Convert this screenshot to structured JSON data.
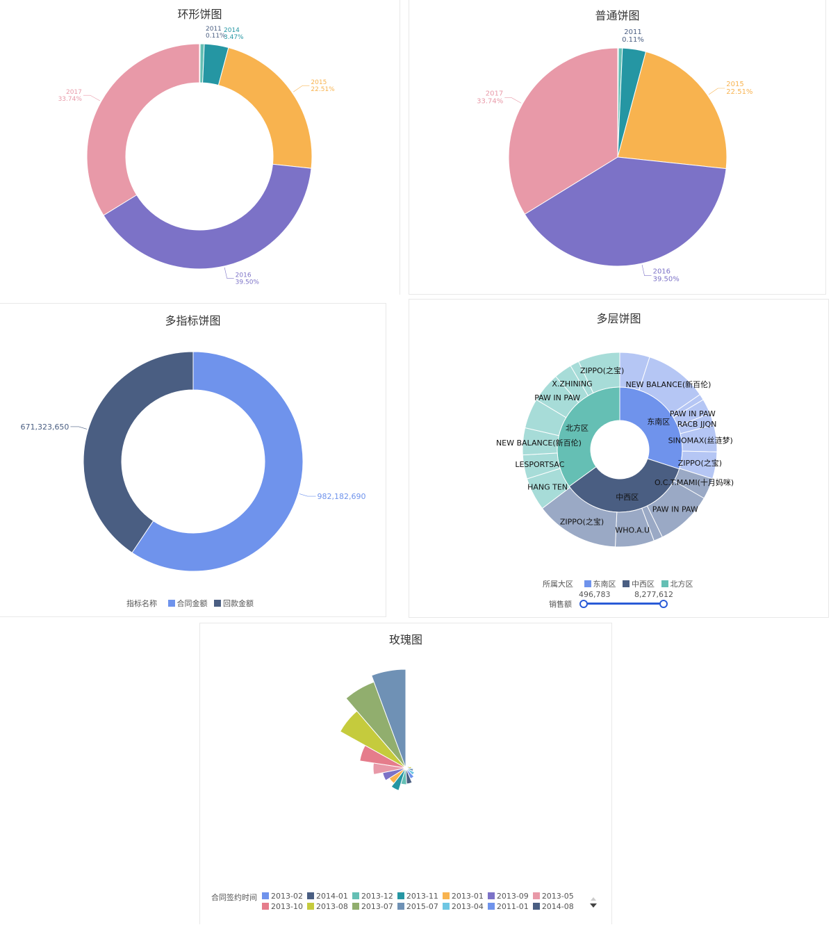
{
  "colors": {
    "teal_dark": "#2596a3",
    "orange": "#f8b34f",
    "purple": "#7c72c7",
    "pink": "#e899a8",
    "blue_light": "#6f93ec",
    "navy": "#4a5e82",
    "blue_gray": "#9aa9c5",
    "teal_light": "#65bfb4",
    "teal_pale": "#a7dcd8",
    "blue_pale": "#b5c6f4"
  },
  "panels": {
    "ring": {
      "title": "环形饼图"
    },
    "pie": {
      "title": "普通饼图"
    },
    "multi": {
      "title": "多指标饼图"
    },
    "sunburst": {
      "title": "多层饼图"
    },
    "rose": {
      "title": "玫瑰图"
    }
  },
  "chart_data": [
    {
      "id": "ring",
      "type": "pie",
      "variant": "donut",
      "title": "环形饼图",
      "slices": [
        {
          "label": "2011",
          "pct_label": "0.11%",
          "value": 0.11,
          "color": "#4a5e82"
        },
        {
          "label": "",
          "pct_label": "",
          "value": 0.58,
          "color": "#65bfb4"
        },
        {
          "label": "2014",
          "pct_label": "3.47%",
          "value": 3.47,
          "color": "#2596a3"
        },
        {
          "label": "2015",
          "pct_label": "22.51%",
          "value": 22.51,
          "color": "#f8b34f"
        },
        {
          "label": "2016",
          "pct_label": "39.50%",
          "value": 39.5,
          "color": "#7c72c7"
        },
        {
          "label": "2017",
          "pct_label": "33.74%",
          "value": 33.74,
          "color": "#e899a8"
        }
      ]
    },
    {
      "id": "pie",
      "type": "pie",
      "title": "普通饼图",
      "slices": [
        {
          "label": "2011",
          "pct_label": "0.11%",
          "value": 0.11,
          "color": "#4a5e82"
        },
        {
          "label": "",
          "pct_label": "",
          "value": 0.58,
          "color": "#65bfb4"
        },
        {
          "label": "",
          "pct_label": "",
          "value": 3.47,
          "color": "#2596a3"
        },
        {
          "label": "2015",
          "pct_label": "22.51%",
          "value": 22.51,
          "color": "#f8b34f"
        },
        {
          "label": "2016",
          "pct_label": "39.50%",
          "value": 39.5,
          "color": "#7c72c7"
        },
        {
          "label": "2017",
          "pct_label": "33.74%",
          "value": 33.74,
          "color": "#e899a8"
        }
      ]
    },
    {
      "id": "multi",
      "type": "pie",
      "variant": "donut",
      "title": "多指标饼图",
      "legend_title": "指标名称",
      "slices": [
        {
          "label": "合同金额",
          "value_label": "982,182,690",
          "value": 982182690,
          "color": "#6f93ec"
        },
        {
          "label": "回款金额",
          "value_label": "671,323,650",
          "value": 671323650,
          "color": "#4a5e82"
        }
      ]
    },
    {
      "id": "sunburst",
      "type": "pie",
      "variant": "sunburst",
      "title": "多层饼图",
      "legend_title": "所属大区",
      "range_title": "销售额",
      "range_min": "496,783",
      "range_max": "8,277,612",
      "inner": [
        {
          "label": "东南区",
          "value": 30,
          "color": "#6f93ec"
        },
        {
          "label": "中西区",
          "value": 35,
          "color": "#4a5e82"
        },
        {
          "label": "北方区",
          "value": 35,
          "color": "#65bfb4"
        }
      ],
      "outer": [
        {
          "label": "",
          "value": 5,
          "color": "#b5c6f4"
        },
        {
          "label": "NEW BALANCE(新百伦)",
          "value": 10.5,
          "color": "#b5c6f4"
        },
        {
          "label": "",
          "value": 1,
          "color": "#b5c6f4"
        },
        {
          "label": "PAW IN PAW",
          "value": 2.5,
          "color": "#b5c6f4"
        },
        {
          "label": "RACB JJQN",
          "value": 2,
          "color": "#b5c6f4"
        },
        {
          "label": "SINOMAX(丝涟梦)",
          "value": 4.5,
          "color": "#b5c6f4"
        },
        {
          "label": "ZIPPO(之宝)",
          "value": 4.5,
          "color": "#b5c6f4"
        },
        {
          "label": "O.C.T.MAMI(十月妈咪)",
          "value": 3.5,
          "color": "#9aa9c5"
        },
        {
          "label": "PAW IN PAW",
          "value": 9.5,
          "color": "#9aa9c5"
        },
        {
          "label": "",
          "value": 1.5,
          "color": "#9aa9c5"
        },
        {
          "label": "WHO.A.U",
          "value": 6.5,
          "color": "#9aa9c5"
        },
        {
          "label": "ZIPPO(之宝)",
          "value": 14,
          "color": "#9aa9c5"
        },
        {
          "label": "HANG TEN",
          "value": 5.5,
          "color": "#a7dcd8"
        },
        {
          "label": "LESPORTSAC",
          "value": 4,
          "color": "#a7dcd8"
        },
        {
          "label": "NEW BALANCE(新百伦)",
          "value": 4.5,
          "color": "#a7dcd8"
        },
        {
          "label": "",
          "value": 5,
          "color": "#a7dcd8"
        },
        {
          "label": "PAW IN PAW",
          "value": 5,
          "color": "#a7dcd8"
        },
        {
          "label": "X.ZHINING",
          "value": 3,
          "color": "#a7dcd8"
        },
        {
          "label": "",
          "value": 1.5,
          "color": "#a7dcd8"
        },
        {
          "label": "ZIPPO(之宝)",
          "value": 7,
          "color": "#a7dcd8"
        }
      ]
    },
    {
      "id": "rose",
      "type": "pie",
      "variant": "rose",
      "title": "玫瑰图",
      "legend_title": "合同签约时间",
      "legend": [
        {
          "label": "2013-02",
          "color": "#6f93ec"
        },
        {
          "label": "2014-01",
          "color": "#4a5e82"
        },
        {
          "label": "2013-12",
          "color": "#65bfb4"
        },
        {
          "label": "2013-11",
          "color": "#2596a3"
        },
        {
          "label": "2013-01",
          "color": "#f8b34f"
        },
        {
          "label": "2013-09",
          "color": "#7c72c7"
        },
        {
          "label": "2013-05",
          "color": "#e899a8"
        },
        {
          "label": "2013-10",
          "color": "#e57c8b"
        },
        {
          "label": "2013-08",
          "color": "#c5cb3d"
        },
        {
          "label": "2013-07",
          "color": "#91ae6e"
        },
        {
          "label": "2015-07",
          "color": "#6f91b5"
        },
        {
          "label": "2013-04",
          "color": "#6ec6e3"
        },
        {
          "label": "2011-01",
          "color": "#6f93ec"
        },
        {
          "label": "2014-08",
          "color": "#4a5e82"
        }
      ],
      "petals": [
        {
          "radius": 1,
          "color": "#f8b34f"
        },
        {
          "radius": 3,
          "color": "#91ae6e"
        },
        {
          "radius": 5,
          "color": "#6f91b5"
        },
        {
          "radius": 8,
          "color": "#c5cb3d"
        },
        {
          "radius": 11,
          "color": "#6f91b5"
        },
        {
          "radius": 14,
          "color": "#6ec6e3"
        },
        {
          "radius": 17,
          "color": "#6f93ec"
        },
        {
          "radius": 23,
          "color": "#4a5e82"
        },
        {
          "radius": 24,
          "color": "#65bfb4"
        },
        {
          "radius": 34,
          "color": "#2596a3"
        },
        {
          "radius": 28,
          "color": "#f8b34f"
        },
        {
          "radius": 34,
          "color": "#7c72c7"
        },
        {
          "radius": 47,
          "color": "#e899a8"
        },
        {
          "radius": 67,
          "color": "#e57c8b"
        },
        {
          "radius": 108,
          "color": "#c5cb3d"
        },
        {
          "radius": 132,
          "color": "#91ae6e"
        },
        {
          "radius": 142,
          "color": "#6f91b5"
        }
      ]
    }
  ]
}
